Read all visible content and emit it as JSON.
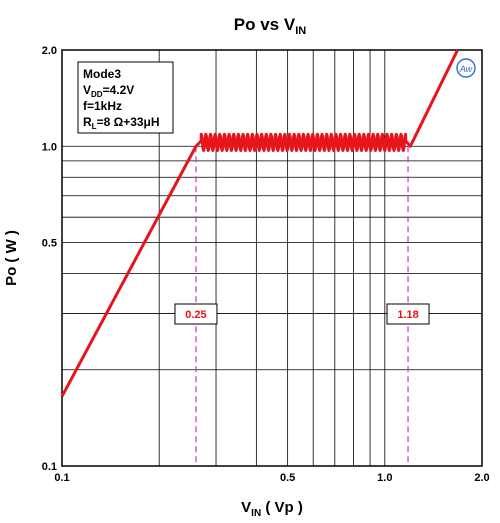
{
  "chart_data": {
    "type": "line",
    "title": {
      "main": "Po vs V",
      "sub": "IN"
    },
    "xlabel": {
      "main": "V",
      "sub": "IN",
      "rest": " ( Vp )"
    },
    "ylabel": "Po ( W )",
    "x_scale": "log",
    "y_scale": "log",
    "xlim": [
      0.1,
      2.0
    ],
    "ylim": [
      0.1,
      2.0
    ],
    "x_ticks": [
      {
        "value": 0.1,
        "label": "0.1"
      },
      {
        "value": 0.5,
        "label": "0.5"
      },
      {
        "value": 1.0,
        "label": "1.0"
      },
      {
        "value": 2.0,
        "label": "2.0"
      }
    ],
    "y_ticks": [
      {
        "value": 0.1,
        "label": "0.1"
      },
      {
        "value": 0.5,
        "label": "0.5"
      },
      {
        "value": 1.0,
        "label": "1.0"
      },
      {
        "value": 2.0,
        "label": "2.0"
      }
    ],
    "grid": true,
    "legend": {
      "placement": "top-left",
      "lines": [
        {
          "main": "Mode3",
          "sub": "",
          "rest": ""
        },
        {
          "main": "V",
          "sub": "DD",
          "rest": "=4.2V"
        },
        {
          "main": "f=1kHz",
          "sub": "",
          "rest": ""
        },
        {
          "main": "R",
          "sub": "L",
          "rest": "=8 Ω+33μH"
        }
      ]
    },
    "series": [
      {
        "color": "#e8141b",
        "x": [
          0.1,
          0.26,
          0.27,
          1.16,
          1.2,
          1.68
        ],
        "y": [
          0.165,
          1.0,
          1.04,
          1.04,
          1.0,
          2.0
        ],
        "ripple": {
          "x_start": 0.27,
          "x_end": 1.16,
          "cycles": 44,
          "y_min": 0.97,
          "y_max": 1.09
        }
      }
    ],
    "annotations": [
      {
        "label": "0.25",
        "x": 0.26,
        "color": "#e8141b"
      },
      {
        "label": "1.18",
        "x": 1.18,
        "color": "#e8141b"
      }
    ],
    "marker_color": "#cc33cc",
    "logo": "Aw"
  }
}
